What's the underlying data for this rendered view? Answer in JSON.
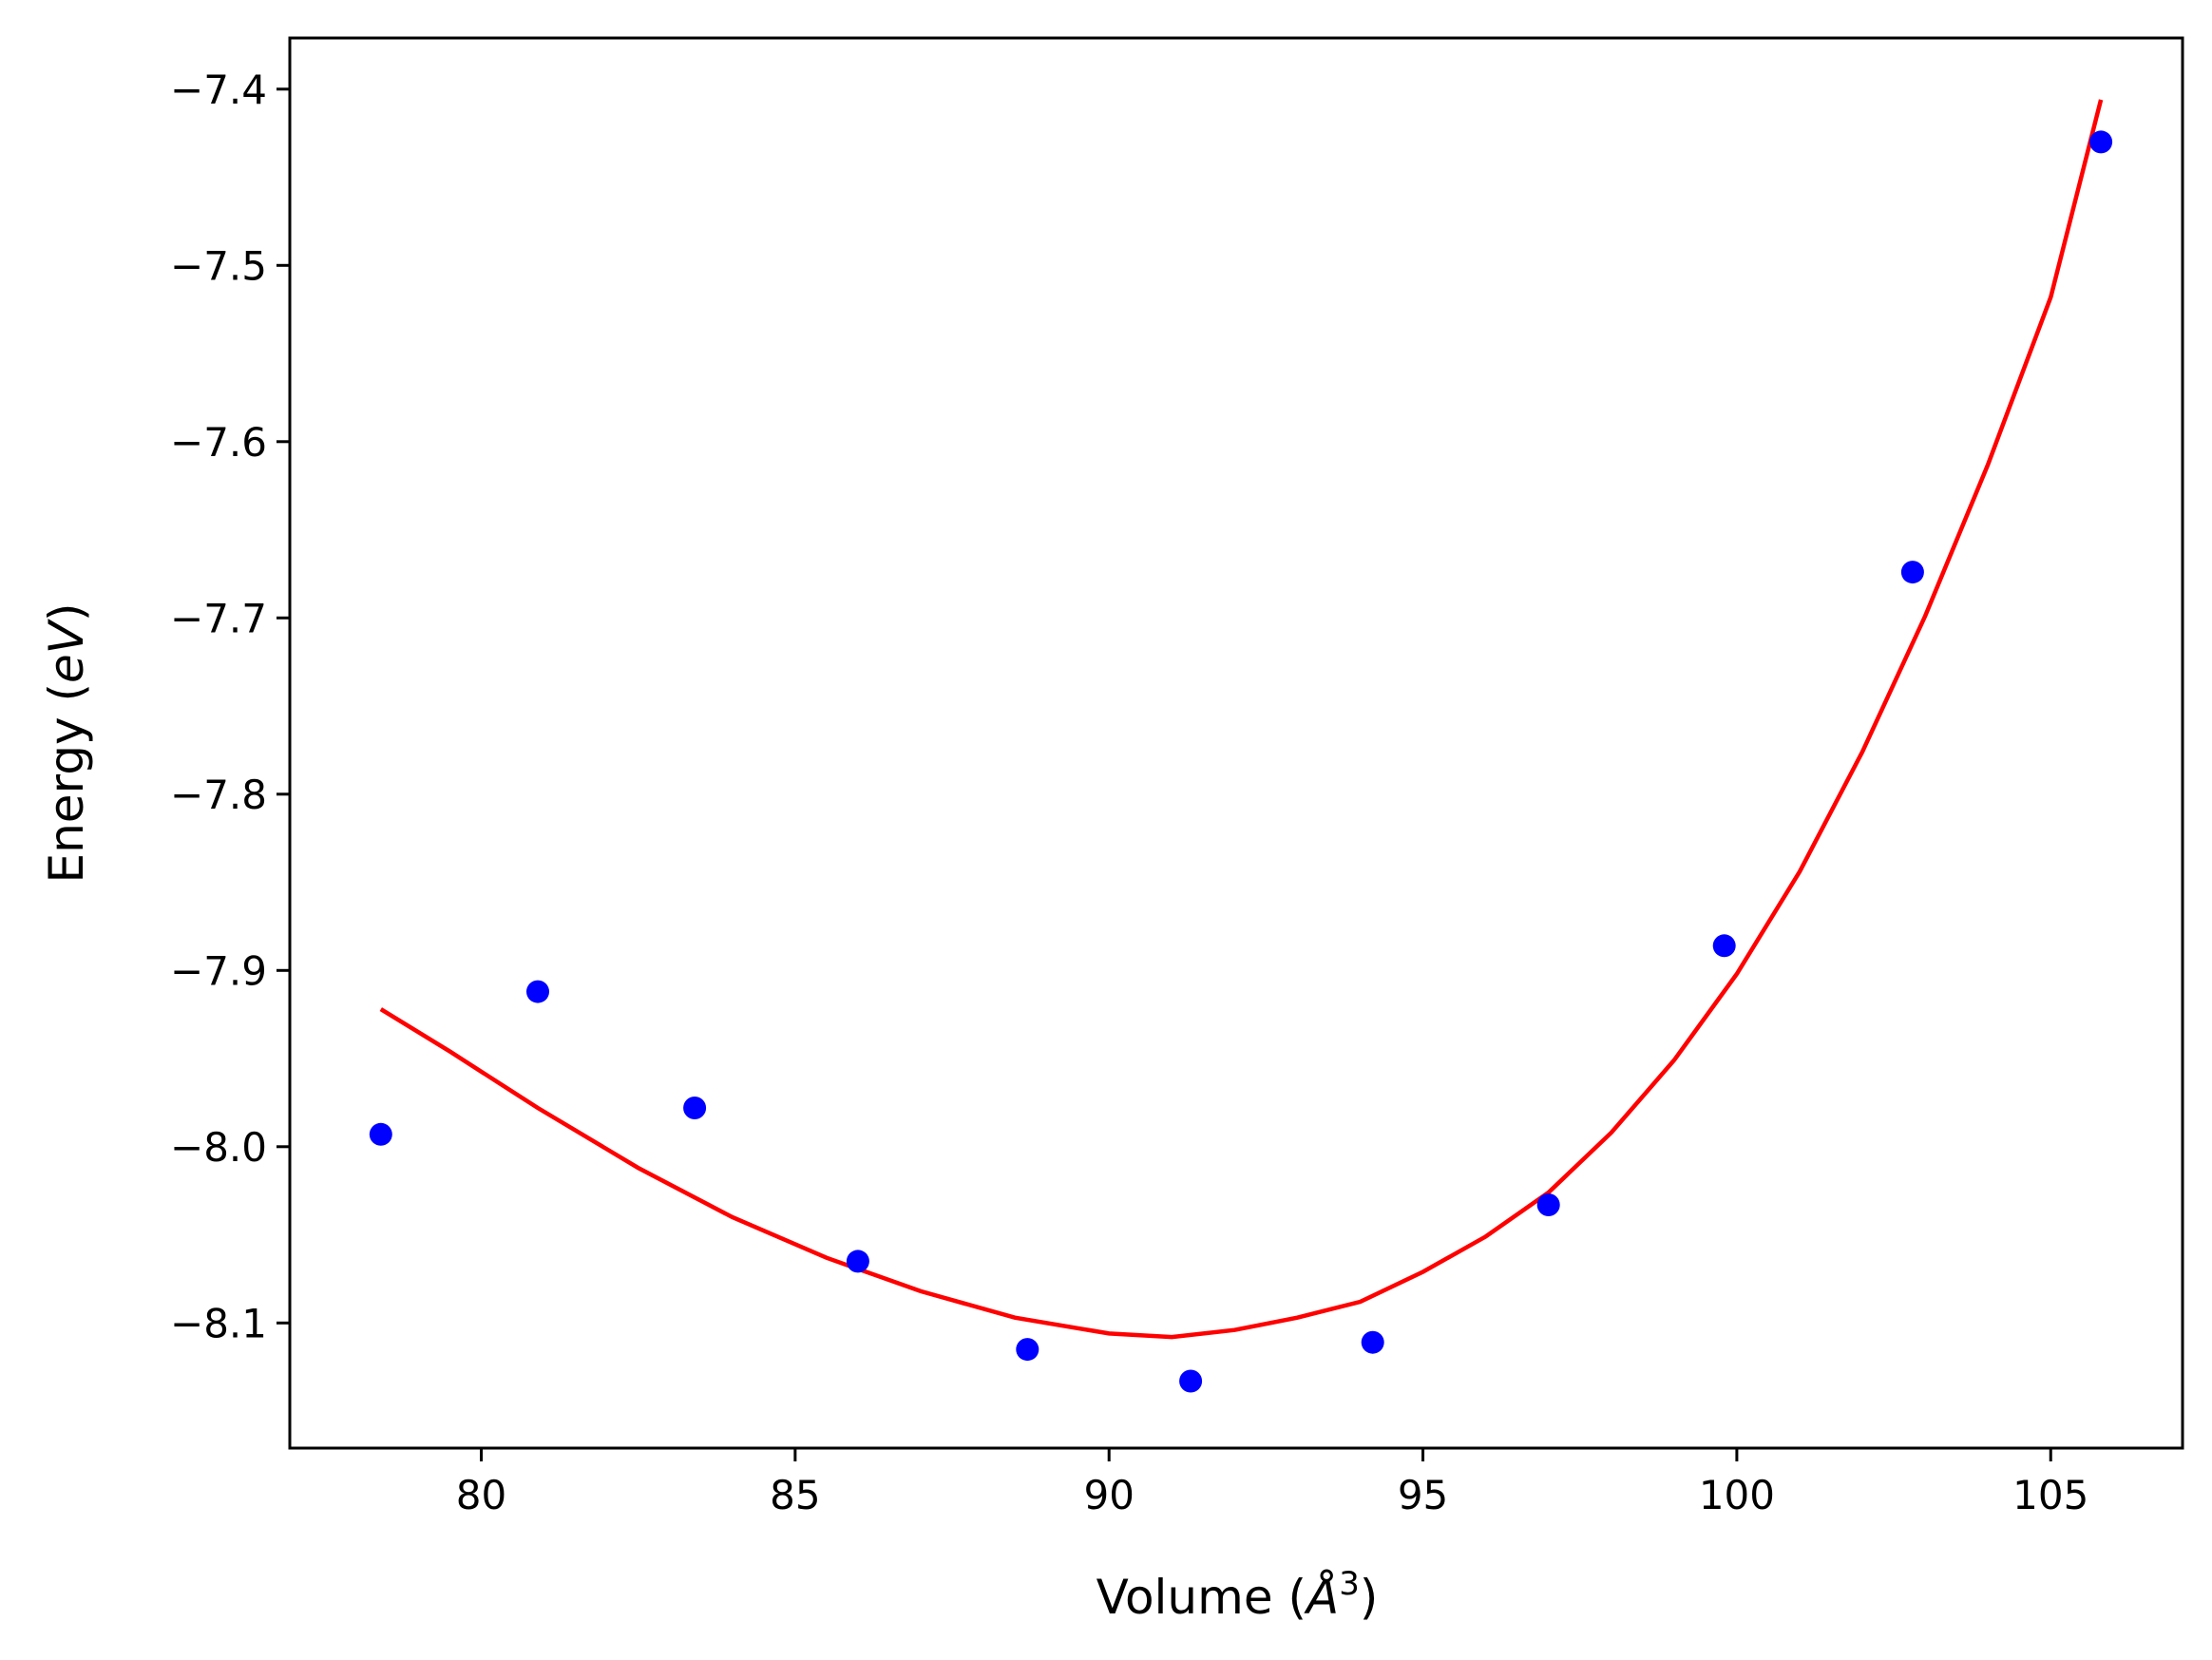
{
  "chart_data": {
    "type": "scatter",
    "xlabel": "Volume (",
    "xlabel_symbol": "Å",
    "xlabel_exponent": "3",
    "xlabel_close": ")",
    "ylabel": "Energy (",
    "ylabel_unit": "eV",
    "ylabel_close": ")",
    "xlim": [
      76.95,
      107.1
    ],
    "ylim": [
      -8.171,
      -7.371
    ],
    "xticks": [
      80,
      85,
      90,
      95,
      100,
      105
    ],
    "xtick_labels": [
      "80",
      "85",
      "90",
      "95",
      "100",
      "105"
    ],
    "yticks": [
      -8.1,
      -8.0,
      -7.9,
      -7.8,
      -7.7,
      -7.6,
      -7.5,
      -7.4
    ],
    "ytick_labels": [
      "−8.1",
      "−8.0",
      "−7.9",
      "−7.8",
      "−7.7",
      "−7.6",
      "−7.5",
      "−7.4"
    ],
    "grid": false,
    "points": {
      "color": "#0000ff",
      "x": [
        78.4,
        80.9,
        83.4,
        86.0,
        88.7,
        91.3,
        94.2,
        97.0,
        99.8,
        102.8,
        105.8
      ],
      "y": [
        -7.993,
        -7.912,
        -7.978,
        -8.065,
        -8.115,
        -8.133,
        -8.111,
        -8.033,
        -7.886,
        -7.674,
        -7.43
      ]
    },
    "fit_line": {
      "color": "#ff0000",
      "x": [
        78.4,
        79.5,
        80.9,
        82.5,
        84.0,
        85.5,
        87.0,
        88.5,
        90.0,
        91.0,
        92.0,
        93.0,
        94.0,
        95.0,
        96.0,
        97.0,
        98.0,
        99.0,
        100.0,
        101.0,
        102.0,
        103.0,
        104.0,
        105.0,
        105.8
      ],
      "y": [
        -7.922,
        -7.946,
        -7.978,
        -8.012,
        -8.04,
        -8.063,
        -8.082,
        -8.097,
        -8.106,
        -8.108,
        -8.104,
        -8.097,
        -8.088,
        -8.071,
        -8.051,
        -8.026,
        -7.992,
        -7.951,
        -7.902,
        -7.844,
        -7.776,
        -7.699,
        -7.613,
        -7.518,
        -7.406
      ]
    }
  }
}
